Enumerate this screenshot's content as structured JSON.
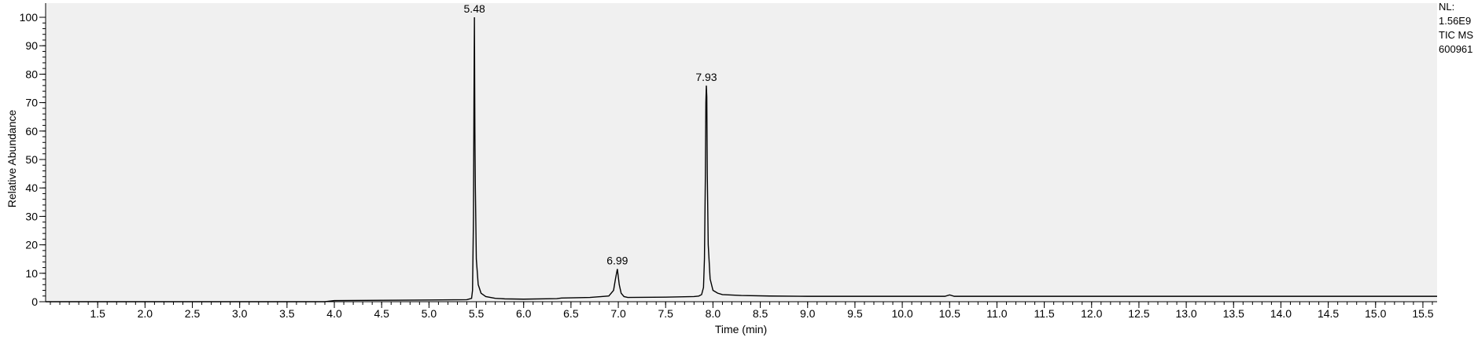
{
  "chart_data": {
    "type": "line",
    "title": "",
    "xlabel": "Time (min)",
    "ylabel": "Relative Abundance",
    "xlim": [
      0.95,
      15.65
    ],
    "ylim": [
      0,
      100
    ],
    "x_ticks": [
      1.5,
      2.0,
      2.5,
      3.0,
      3.5,
      4.0,
      4.5,
      5.0,
      5.5,
      6.0,
      6.5,
      7.0,
      7.5,
      8.0,
      8.5,
      9.0,
      9.5,
      10.0,
      10.5,
      11.0,
      11.5,
      12.0,
      12.5,
      13.0,
      13.5,
      14.0,
      14.5,
      15.0,
      15.5
    ],
    "x_tick_labels": [
      "1.5",
      "2.0",
      "2.5",
      "3.0",
      "3.5",
      "4.0",
      "4.5",
      "5.0",
      "5.5",
      "6.0",
      "6.5",
      "7.0",
      "7.5",
      "8.0",
      "8.5",
      "9.0",
      "9.5",
      "10.0",
      "10.5",
      "11.0",
      "11.5",
      "12.0",
      "12.5",
      "13.0",
      "13.5",
      "14.0",
      "14.5",
      "15.0",
      "15.5"
    ],
    "y_ticks": [
      0,
      10,
      20,
      30,
      40,
      50,
      60,
      70,
      80,
      90,
      100
    ],
    "y_tick_labels": [
      "0",
      "10",
      "20",
      "30",
      "40",
      "50",
      "60",
      "70",
      "80",
      "90",
      "100"
    ],
    "grid": false,
    "background": "#f0f0f0",
    "line_color": "#000000",
    "peaks": [
      {
        "x": 5.48,
        "y": 100,
        "label": "5.48"
      },
      {
        "x": 6.99,
        "y": 11.5,
        "label": "6.99"
      },
      {
        "x": 7.93,
        "y": 76,
        "label": "7.93"
      }
    ],
    "series": [
      {
        "x": [
          0.95,
          3.9,
          4.0,
          4.5,
          5.0,
          5.4,
          5.45,
          5.46,
          5.47,
          5.475,
          5.48,
          5.485,
          5.49,
          5.5,
          5.52,
          5.55,
          5.6,
          5.7,
          5.8,
          6.0,
          6.35,
          6.4,
          6.7,
          6.9,
          6.95,
          6.97,
          6.99,
          7.01,
          7.03,
          7.06,
          7.1,
          7.5,
          7.8,
          7.85,
          7.88,
          7.9,
          7.91,
          7.92,
          7.925,
          7.93,
          7.935,
          7.94,
          7.95,
          7.97,
          8.0,
          8.05,
          8.1,
          8.3,
          8.6,
          9.0,
          10.0,
          10.45,
          10.5,
          10.55,
          11.0,
          15.65
        ],
        "y": [
          0,
          0,
          0.4,
          0.5,
          0.6,
          0.7,
          1.2,
          4,
          30,
          70,
          100,
          60,
          40,
          15,
          6,
          3,
          1.8,
          1.2,
          1,
          0.9,
          1.1,
          1.3,
          1.5,
          2,
          4,
          8,
          11.5,
          6,
          3,
          1.8,
          1.5,
          1.6,
          1.8,
          2,
          2.5,
          5,
          15,
          45,
          70,
          76,
          72,
          45,
          20,
          8,
          4,
          3,
          2.5,
          2.2,
          2,
          1.9,
          1.9,
          1.9,
          2.4,
          1.9,
          1.9,
          1.9
        ]
      }
    ]
  },
  "annotation": {
    "nl_label": "NL:",
    "nl_value": "1.56E9",
    "trace": "TIC  MS",
    "file": "600961"
  }
}
